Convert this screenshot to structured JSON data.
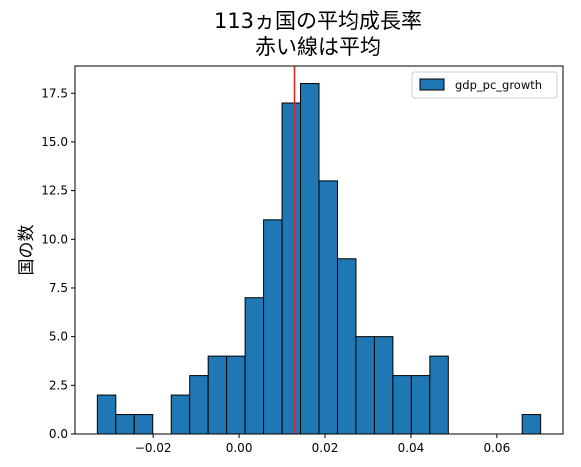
{
  "chart_data": {
    "type": "bar",
    "title_lines": [
      "113ヵ国の平均成長率",
      "赤い線は平均"
    ],
    "xlabel": "",
    "ylabel": "国の数",
    "bin_edges": [
      -0.033,
      -0.0287,
      -0.0244,
      -0.0201,
      -0.0158,
      -0.0115,
      -0.0072,
      -0.0029,
      0.0014,
      0.0057,
      0.01,
      0.0143,
      0.0186,
      0.0229,
      0.0272,
      0.0315,
      0.0358,
      0.0401,
      0.0444,
      0.0487,
      0.053,
      0.0573,
      0.0616,
      0.0659,
      0.0702
    ],
    "counts": [
      2,
      1,
      1,
      0,
      2,
      3,
      4,
      4,
      7,
      11,
      17,
      18,
      13,
      9,
      5,
      5,
      3,
      3,
      4,
      0,
      0,
      0,
      0,
      1
    ],
    "xlim": [
      -0.0382,
      0.0754
    ],
    "ylim": [
      0,
      18.9
    ],
    "x_ticks": [
      -0.02,
      0.0,
      0.02,
      0.04,
      0.06
    ],
    "x_tick_labels": [
      "−0.02",
      "0.00",
      "0.02",
      "0.04",
      "0.06"
    ],
    "y_ticks": [
      0,
      2.5,
      5,
      7.5,
      10,
      12.5,
      15,
      17.5
    ],
    "y_tick_labels": [
      "0.0",
      "2.5",
      "5.0",
      "7.5",
      "10.0",
      "12.5",
      "15.0",
      "17.5"
    ],
    "mean_line": 0.0129,
    "grid": false,
    "legend": {
      "position": "top-right",
      "label": "gdp_pc_growth"
    },
    "colors": {
      "bar_fill": "#1f77b4",
      "bar_edge": "#000000",
      "mean_line": "#d62728"
    }
  }
}
